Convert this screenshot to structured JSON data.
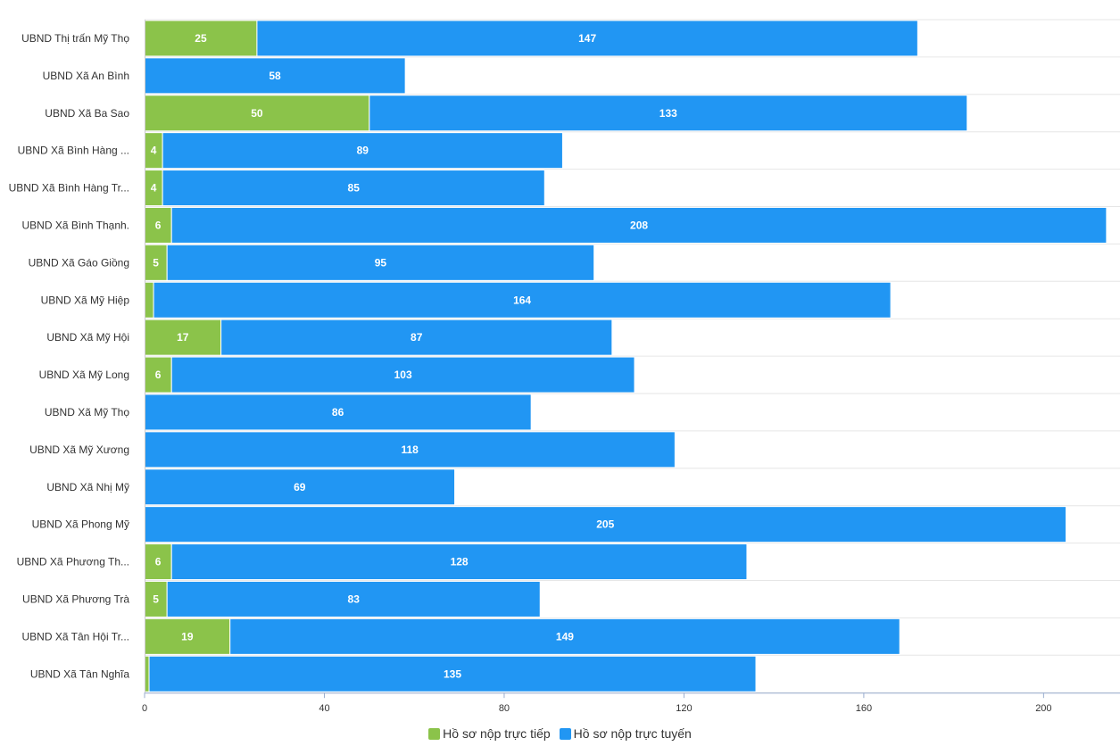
{
  "chart_data": {
    "type": "bar",
    "orientation": "horizontal",
    "stacked": true,
    "categories": [
      "UBND Thị trấn Mỹ Thọ",
      "UBND Xã An Bình",
      "UBND Xã Ba Sao",
      "UBND Xã Bình Hàng ...",
      "UBND Xã Bình Hàng Tr...",
      "UBND Xã Bình Thạnh.",
      "UBND Xã Gáo Giồng",
      "UBND Xã Mỹ Hiệp",
      "UBND Xã Mỹ Hội",
      "UBND Xã Mỹ Long",
      "UBND Xã Mỹ Thọ",
      "UBND Xã Mỹ Xương",
      "UBND Xã Nhị Mỹ",
      "UBND Xã Phong Mỹ",
      "UBND Xã Phương Th...",
      "UBND Xã Phương Trà",
      "UBND Xã Tân Hội Tr...",
      "UBND Xã Tân Nghĩa"
    ],
    "series": [
      {
        "name": "Hồ sơ nộp trực tiếp",
        "color": "#8bc34a",
        "values": [
          25,
          0,
          50,
          4,
          4,
          6,
          5,
          2,
          17,
          6,
          0,
          0,
          0,
          0,
          6,
          5,
          19,
          1
        ],
        "labels": [
          "25",
          "",
          "50",
          "4",
          "4",
          "6",
          "5",
          "",
          "17",
          "6",
          "",
          "",
          "",
          "",
          "6",
          "5",
          "19",
          ""
        ]
      },
      {
        "name": "Hồ sơ nộp trực tuyến",
        "color": "#2196f3",
        "values": [
          147,
          58,
          133,
          89,
          85,
          208,
          95,
          164,
          87,
          103,
          86,
          118,
          69,
          205,
          128,
          83,
          149,
          135
        ],
        "labels": [
          "147",
          "58",
          "133",
          "89",
          "85",
          "208",
          "95",
          "164",
          "87",
          "103",
          "86",
          "118",
          "69",
          "205",
          "128",
          "83",
          "149",
          "135"
        ]
      }
    ],
    "xlim": [
      0,
      217
    ],
    "x_ticks": [
      0,
      40,
      80,
      120,
      160,
      200
    ],
    "x_tick_labels": [
      "0",
      "40",
      "80",
      "120",
      "160",
      "200"
    ],
    "grid": "horizontal",
    "legend_position": "bottom-center"
  }
}
